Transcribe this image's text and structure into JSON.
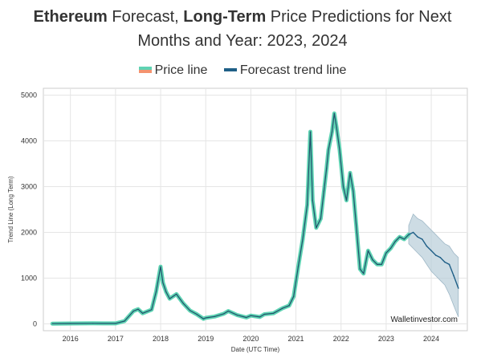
{
  "title": {
    "part1": "Ethereum",
    "part2": " Forecast, ",
    "part3": "Long-Term",
    "part4": " Price Predictions for Next",
    "line2": "Months and Year: 2023, 2024"
  },
  "legend": [
    {
      "label": "Price line",
      "color_top": "#5fd3b3",
      "color_bottom": "#f4936f"
    },
    {
      "label": "Forecast trend line",
      "color": "#1f5f87"
    }
  ],
  "watermark": "Walletinvestor.com",
  "colors": {
    "price_line": "#5fd3b3",
    "price_core": "#1f4f6a",
    "forecast_line": "#1f5f87",
    "forecast_band": "#b8cdd9",
    "grid": "#e5e5e5"
  },
  "chart_data": {
    "type": "line",
    "xlabel": "Date (UTC Time)",
    "ylabel": "Trend Line (Long Term)",
    "xlim": [
      2015.4,
      2024.8
    ],
    "ylim": [
      -150,
      5150
    ],
    "x_ticks": [
      2016,
      2017,
      2018,
      2019,
      2020,
      2021,
      2022,
      2023,
      2024
    ],
    "y_ticks": [
      0,
      1000,
      2000,
      3000,
      4000,
      5000
    ],
    "grid": true,
    "series": [
      {
        "name": "Price line",
        "x": [
          2015.6,
          2016.0,
          2016.5,
          2017.0,
          2017.2,
          2017.4,
          2017.5,
          2017.6,
          2017.8,
          2017.9,
          2018.0,
          2018.05,
          2018.12,
          2018.2,
          2018.35,
          2018.5,
          2018.65,
          2018.8,
          2018.95,
          2019.0,
          2019.2,
          2019.4,
          2019.5,
          2019.7,
          2019.9,
          2020.0,
          2020.2,
          2020.3,
          2020.5,
          2020.7,
          2020.85,
          2020.95,
          2021.05,
          2021.15,
          2021.25,
          2021.32,
          2021.37,
          2021.45,
          2021.55,
          2021.62,
          2021.68,
          2021.72,
          2021.8,
          2021.85,
          2021.9,
          2021.97,
          2022.05,
          2022.12,
          2022.2,
          2022.27,
          2022.35,
          2022.42,
          2022.5,
          2022.6,
          2022.7,
          2022.8,
          2022.9,
          2023.0,
          2023.1,
          2023.2,
          2023.3,
          2023.4,
          2023.5
        ],
        "y": [
          5,
          8,
          12,
          10,
          60,
          280,
          320,
          230,
          310,
          700,
          1250,
          900,
          700,
          550,
          650,
          450,
          290,
          210,
          110,
          130,
          160,
          220,
          280,
          190,
          140,
          180,
          150,
          210,
          230,
          340,
          400,
          600,
          1250,
          1850,
          2600,
          4200,
          2700,
          2100,
          2300,
          2900,
          3400,
          3800,
          4200,
          4600,
          4300,
          3800,
          3000,
          2700,
          3300,
          2900,
          2000,
          1200,
          1100,
          1600,
          1400,
          1300,
          1300,
          1550,
          1650,
          1800,
          1900,
          1850,
          1950
        ]
      },
      {
        "name": "Forecast trend line",
        "x": [
          2023.5,
          2023.6,
          2023.7,
          2023.8,
          2023.9,
          2024.0,
          2024.1,
          2024.2,
          2024.3,
          2024.4,
          2024.5,
          2024.6
        ],
        "y": [
          1950,
          2000,
          1900,
          1850,
          1700,
          1600,
          1500,
          1450,
          1350,
          1300,
          1050,
          780
        ],
        "band_upper": [
          2150,
          2400,
          2300,
          2250,
          2150,
          2050,
          1950,
          1850,
          1750,
          1700,
          1550,
          1450
        ],
        "band_lower": [
          1750,
          1650,
          1550,
          1450,
          1300,
          1150,
          1050,
          950,
          850,
          650,
          400,
          150
        ]
      }
    ]
  }
}
